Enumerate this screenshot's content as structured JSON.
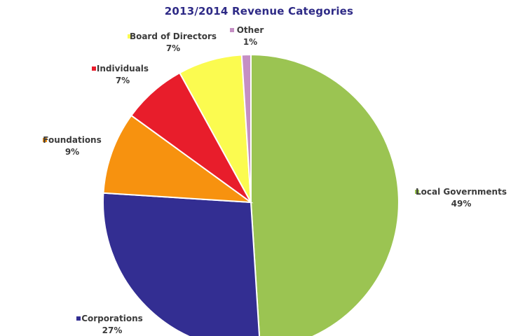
{
  "chart_data": {
    "type": "pie",
    "title": "2013/2014 Revenue Categories",
    "slices": [
      {
        "label": "Local Governments",
        "value": 49,
        "display": "49%",
        "color": "#9bc452"
      },
      {
        "label": "Corporations",
        "value": 27,
        "display": "27%",
        "color": "#332e92"
      },
      {
        "label": "Foundations",
        "value": 9,
        "display": "9%",
        "color": "#f7920f"
      },
      {
        "label": "Individuals",
        "value": 7,
        "display": "7%",
        "color": "#e81d2b"
      },
      {
        "label": "Board of Directors",
        "value": 7,
        "display": "7%",
        "color": "#fbfb50"
      },
      {
        "label": "Other",
        "value": 1,
        "display": "1%",
        "color": "#c58fc4"
      }
    ],
    "legend": "labels-beside-slices"
  }
}
